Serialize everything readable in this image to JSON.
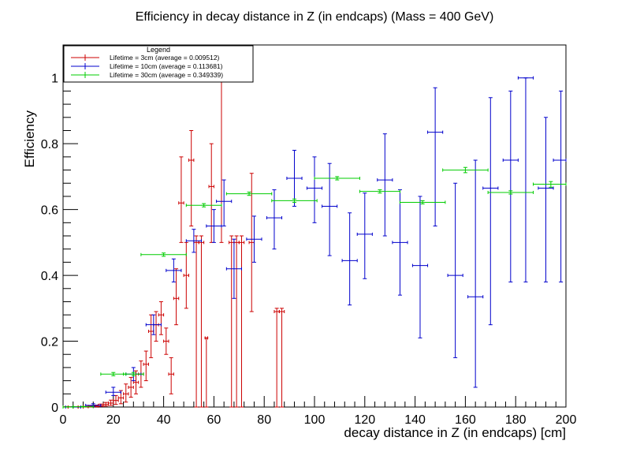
{
  "chart_data": {
    "type": "scatter",
    "title": "Efficiency in decay distance in Z (in endcaps) (Mass = 400 GeV)",
    "xlabel": "decay distance in Z (in endcaps) [cm]",
    "ylabel": "Efficiency",
    "xlim": [
      0,
      200
    ],
    "ylim": [
      0,
      1.1
    ],
    "x_ticks": [
      0,
      20,
      40,
      60,
      80,
      100,
      120,
      140,
      160,
      180,
      200
    ],
    "x_tick_labels": [
      "0",
      "20",
      "40",
      "60",
      "80",
      "100",
      "120",
      "140",
      "160",
      "180",
      "200"
    ],
    "y_ticks": [
      0,
      0.2,
      0.4,
      0.6,
      0.8,
      1
    ],
    "y_tick_labels": [
      "0",
      "0.2",
      "0.4",
      "0.6",
      "0.8",
      "1"
    ],
    "grid": false,
    "legend": {
      "title": "Legend",
      "placement": "top-left",
      "entries": [
        "Lifetime = 3cm (average = 0.009512)",
        "Lifetime = 10cm (average = 0.113681)",
        "Lifetime = 30cm (average = 0.349339)"
      ]
    },
    "series": [
      {
        "name": "Lifetime = 3cm (average = 0.009512)",
        "color": "#cc0000",
        "points": [
          {
            "x": 1.0,
            "y": 0.0,
            "xe": 1.0,
            "lo": 0.0,
            "hi": 0.001
          },
          {
            "x": 3.0,
            "y": 0.0,
            "xe": 1.0,
            "lo": 0.0,
            "hi": 0.001
          },
          {
            "x": 5.0,
            "y": 0.0,
            "xe": 1.0,
            "lo": 0.0,
            "hi": 0.001
          },
          {
            "x": 7.0,
            "y": 0.0,
            "xe": 1.0,
            "lo": 0.0,
            "hi": 0.001
          },
          {
            "x": 9.0,
            "y": 0.001,
            "xe": 1.0,
            "lo": 0.0,
            "hi": 0.002
          },
          {
            "x": 11.0,
            "y": 0.002,
            "xe": 1.0,
            "lo": 0.0,
            "hi": 0.004
          },
          {
            "x": 13.0,
            "y": 0.003,
            "xe": 1.0,
            "lo": 0.001,
            "hi": 0.006
          },
          {
            "x": 15.0,
            "y": 0.005,
            "xe": 1.0,
            "lo": 0.002,
            "hi": 0.009
          },
          {
            "x": 17.0,
            "y": 0.008,
            "xe": 1.0,
            "lo": 0.003,
            "hi": 0.014
          },
          {
            "x": 19.0,
            "y": 0.012,
            "xe": 1.0,
            "lo": 0.005,
            "hi": 0.021
          },
          {
            "x": 21.0,
            "y": 0.02,
            "xe": 1.0,
            "lo": 0.008,
            "hi": 0.035
          },
          {
            "x": 23.0,
            "y": 0.028,
            "xe": 1.0,
            "lo": 0.01,
            "hi": 0.05
          },
          {
            "x": 25.0,
            "y": 0.04,
            "xe": 1.0,
            "lo": 0.015,
            "hi": 0.07
          },
          {
            "x": 27.0,
            "y": 0.06,
            "xe": 1.0,
            "lo": 0.03,
            "hi": 0.09
          },
          {
            "x": 29.0,
            "y": 0.075,
            "xe": 1.0,
            "lo": 0.04,
            "hi": 0.11
          },
          {
            "x": 31.0,
            "y": 0.1,
            "xe": 1.0,
            "lo": 0.06,
            "hi": 0.14
          },
          {
            "x": 33.0,
            "y": 0.13,
            "xe": 1.0,
            "lo": 0.08,
            "hi": 0.17
          },
          {
            "x": 35.0,
            "y": 0.23,
            "xe": 1.0,
            "lo": 0.15,
            "hi": 0.28
          },
          {
            "x": 37.0,
            "y": 0.25,
            "xe": 1.0,
            "lo": 0.2,
            "hi": 0.29
          },
          {
            "x": 39.0,
            "y": 0.28,
            "xe": 1.0,
            "lo": 0.22,
            "hi": 0.32
          },
          {
            "x": 41.0,
            "y": 0.2,
            "xe": 1.0,
            "lo": 0.16,
            "hi": 0.24
          },
          {
            "x": 43.0,
            "y": 0.1,
            "xe": 1.0,
            "lo": 0.04,
            "hi": 0.15
          },
          {
            "x": 45.0,
            "y": 0.33,
            "xe": 1.0,
            "lo": 0.25,
            "hi": 0.42
          },
          {
            "x": 47.0,
            "y": 0.62,
            "xe": 1.0,
            "lo": 0.5,
            "hi": 0.76
          },
          {
            "x": 49.0,
            "y": 0.4,
            "xe": 1.0,
            "lo": 0.3,
            "hi": 0.5
          },
          {
            "x": 51.0,
            "y": 0.75,
            "xe": 1.0,
            "lo": 0.55,
            "hi": 0.84
          },
          {
            "x": 53.0,
            "y": 0.5,
            "xe": 1.0,
            "lo": 0.0,
            "hi": 0.52
          },
          {
            "x": 55.0,
            "y": 0.5,
            "xe": 1.0,
            "lo": 0.0,
            "hi": 0.52
          },
          {
            "x": 57.0,
            "y": 0.21,
            "xe": 0.5,
            "lo": 0.0,
            "hi": 0.21
          },
          {
            "x": 59.0,
            "y": 0.67,
            "xe": 1.0,
            "lo": 0.5,
            "hi": 0.8
          },
          {
            "x": 63.0,
            "y": 1.0,
            "xe": 1.0,
            "lo": 0.5,
            "hi": 1.0
          },
          {
            "x": 67.0,
            "y": 0.5,
            "xe": 1.0,
            "lo": 0.0,
            "hi": 0.52
          },
          {
            "x": 69.0,
            "y": 0.5,
            "xe": 1.0,
            "lo": 0.0,
            "hi": 0.52
          },
          {
            "x": 71.0,
            "y": 0.5,
            "xe": 1.0,
            "lo": 0.0,
            "hi": 0.52
          },
          {
            "x": 75.0,
            "y": 0.5,
            "xe": 1.0,
            "lo": 0.29,
            "hi": 0.71
          },
          {
            "x": 85.0,
            "y": 0.29,
            "xe": 1.0,
            "lo": 0.0,
            "hi": 0.3
          },
          {
            "x": 87.0,
            "y": 0.29,
            "xe": 1.0,
            "lo": 0.0,
            "hi": 0.3
          }
        ]
      },
      {
        "name": "Lifetime = 10cm (average = 0.113681)",
        "color": "#0000cc",
        "points": [
          {
            "x": 4.0,
            "y": 0.0,
            "xe": 3.0,
            "lo": 0.0,
            "hi": 0.001
          },
          {
            "x": 12.0,
            "y": 0.005,
            "xe": 3.0,
            "lo": 0.002,
            "hi": 0.01
          },
          {
            "x": 20.0,
            "y": 0.045,
            "xe": 3.0,
            "lo": 0.035,
            "hi": 0.06
          },
          {
            "x": 28.0,
            "y": 0.1,
            "xe": 3.0,
            "lo": 0.08,
            "hi": 0.12
          },
          {
            "x": 36.0,
            "y": 0.25,
            "xe": 3.0,
            "lo": 0.22,
            "hi": 0.28
          },
          {
            "x": 44.0,
            "y": 0.415,
            "xe": 3.0,
            "lo": 0.38,
            "hi": 0.45
          },
          {
            "x": 52.0,
            "y": 0.505,
            "xe": 3.0,
            "lo": 0.47,
            "hi": 0.54
          },
          {
            "x": 60.0,
            "y": 0.55,
            "xe": 3.0,
            "lo": 0.5,
            "hi": 0.6
          },
          {
            "x": 64.0,
            "y": 0.625,
            "xe": 3.0,
            "lo": 0.55,
            "hi": 0.69
          },
          {
            "x": 68.0,
            "y": 0.42,
            "xe": 3.0,
            "lo": 0.33,
            "hi": 0.51
          },
          {
            "x": 76.0,
            "y": 0.51,
            "xe": 3.0,
            "lo": 0.44,
            "hi": 0.58
          },
          {
            "x": 84.0,
            "y": 0.575,
            "xe": 3.0,
            "lo": 0.48,
            "hi": 0.66
          },
          {
            "x": 92.0,
            "y": 0.695,
            "xe": 3.0,
            "lo": 0.61,
            "hi": 0.78
          },
          {
            "x": 100.0,
            "y": 0.665,
            "xe": 3.0,
            "lo": 0.56,
            "hi": 0.76
          },
          {
            "x": 106.0,
            "y": 0.61,
            "xe": 3.0,
            "lo": 0.46,
            "hi": 0.74
          },
          {
            "x": 114.0,
            "y": 0.445,
            "xe": 3.0,
            "lo": 0.31,
            "hi": 0.59
          },
          {
            "x": 120.0,
            "y": 0.525,
            "xe": 3.0,
            "lo": 0.39,
            "hi": 0.65
          },
          {
            "x": 128.0,
            "y": 0.69,
            "xe": 3.0,
            "lo": 0.52,
            "hi": 0.83
          },
          {
            "x": 134.0,
            "y": 0.5,
            "xe": 3.0,
            "lo": 0.34,
            "hi": 0.66
          },
          {
            "x": 142.0,
            "y": 0.43,
            "xe": 3.0,
            "lo": 0.21,
            "hi": 0.64
          },
          {
            "x": 148.0,
            "y": 0.835,
            "xe": 3.0,
            "lo": 0.55,
            "hi": 0.97
          },
          {
            "x": 156.0,
            "y": 0.4,
            "xe": 3.0,
            "lo": 0.15,
            "hi": 0.68
          },
          {
            "x": 164.0,
            "y": 0.335,
            "xe": 3.0,
            "lo": 0.06,
            "hi": 0.75
          },
          {
            "x": 170.0,
            "y": 0.665,
            "xe": 3.0,
            "lo": 0.25,
            "hi": 0.94
          },
          {
            "x": 178.0,
            "y": 0.75,
            "xe": 3.0,
            "lo": 0.38,
            "hi": 0.96
          },
          {
            "x": 184.0,
            "y": 1.0,
            "xe": 3.0,
            "lo": 0.38,
            "hi": 1.0
          },
          {
            "x": 192.0,
            "y": 0.665,
            "xe": 3.0,
            "lo": 0.38,
            "hi": 0.88
          },
          {
            "x": 198.0,
            "y": 0.75,
            "xe": 3.0,
            "lo": 0.38,
            "hi": 0.96
          }
        ]
      },
      {
        "name": "Lifetime = 30cm (average = 0.349339)",
        "color": "#00cc00",
        "points": [
          {
            "x": 2.0,
            "y": 0.0,
            "xe": 2.0,
            "lo": 0.0,
            "hi": 0.001
          },
          {
            "x": 8.0,
            "y": 0.001,
            "xe": 4.0,
            "lo": 0.0,
            "hi": 0.002
          },
          {
            "x": 20.0,
            "y": 0.1,
            "xe": 5.0,
            "lo": 0.095,
            "hi": 0.105
          },
          {
            "x": 28.0,
            "y": 0.1,
            "xe": 4.0,
            "lo": 0.095,
            "hi": 0.105
          },
          {
            "x": 40.0,
            "y": 0.463,
            "xe": 9.0,
            "lo": 0.458,
            "hi": 0.468
          },
          {
            "x": 56.0,
            "y": 0.613,
            "xe": 7.0,
            "lo": 0.608,
            "hi": 0.618
          },
          {
            "x": 74.0,
            "y": 0.648,
            "xe": 9.0,
            "lo": 0.643,
            "hi": 0.653
          },
          {
            "x": 92.0,
            "y": 0.627,
            "xe": 9.0,
            "lo": 0.622,
            "hi": 0.632
          },
          {
            "x": 109.0,
            "y": 0.695,
            "xe": 9.0,
            "lo": 0.69,
            "hi": 0.7
          },
          {
            "x": 126.0,
            "y": 0.655,
            "xe": 8.0,
            "lo": 0.65,
            "hi": 0.66
          },
          {
            "x": 143.0,
            "y": 0.622,
            "xe": 9.0,
            "lo": 0.617,
            "hi": 0.627
          },
          {
            "x": 160.0,
            "y": 0.72,
            "xe": 9.0,
            "lo": 0.712,
            "hi": 0.728
          },
          {
            "x": 178.0,
            "y": 0.652,
            "xe": 9.0,
            "lo": 0.647,
            "hi": 0.657
          },
          {
            "x": 194.0,
            "y": 0.677,
            "xe": 7.0,
            "lo": 0.668,
            "hi": 0.685
          }
        ]
      }
    ]
  }
}
